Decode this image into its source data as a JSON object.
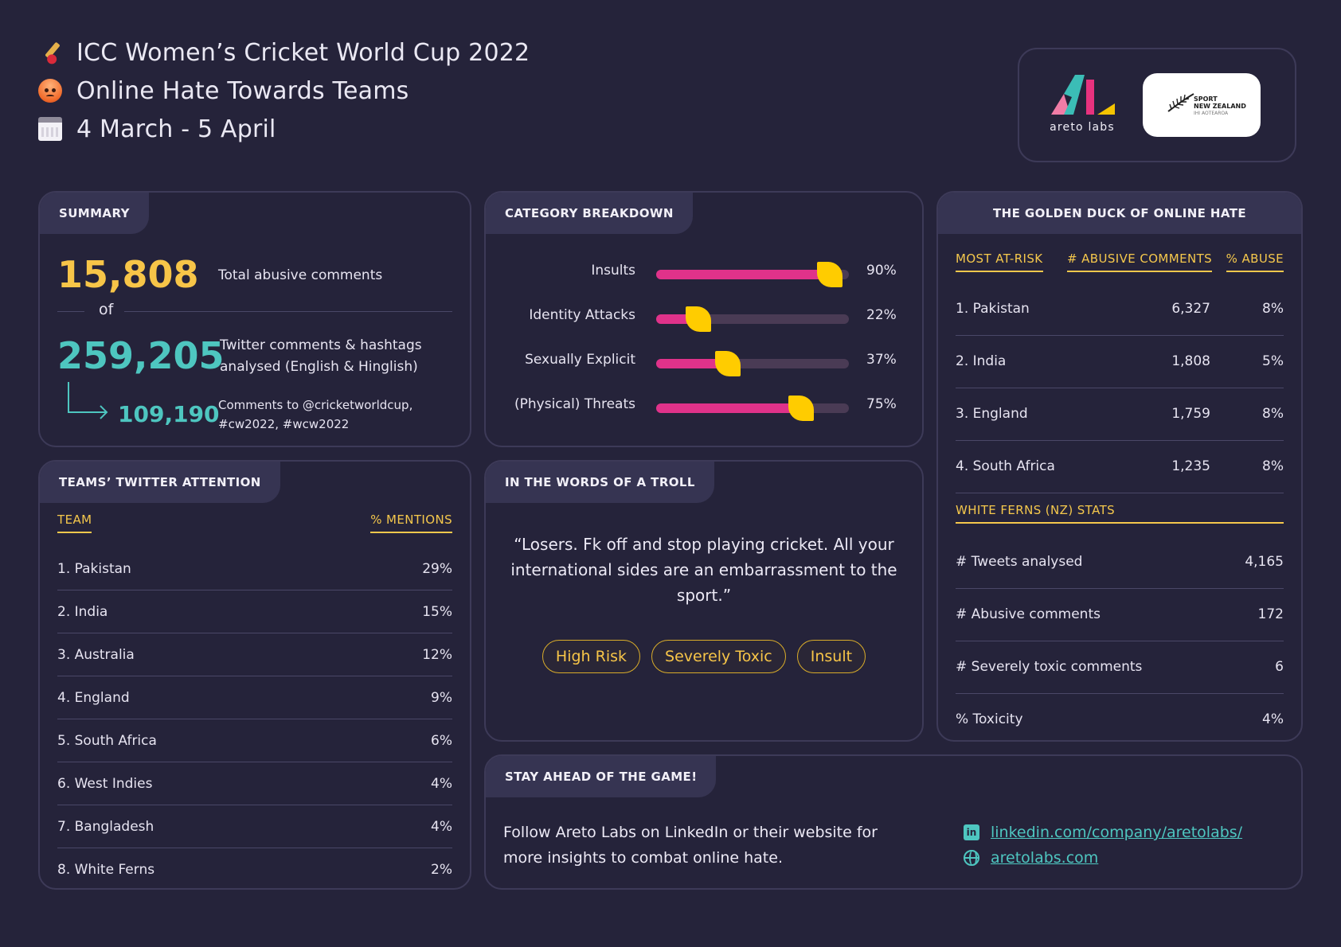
{
  "header": {
    "title": "ICC Women’s Cricket World Cup 2022",
    "subtitle": "Online Hate Towards Teams",
    "dates": "4 March - 5 April",
    "icons": [
      "cricket-bat-icon",
      "angry-face-icon",
      "calendar-icon"
    ]
  },
  "logos": {
    "areto_label": "areto labs",
    "snz_line1": "SPORT",
    "snz_line2": "NEW ZEALAND",
    "snz_line3": "IHI AOTEAROA"
  },
  "summary": {
    "tab": "SUMMARY",
    "abusive_count": "15,808",
    "abusive_label": "Total abusive comments",
    "of": "of",
    "analysed_count": "259,205",
    "analysed_label_1": "Twitter comments & hashtags",
    "analysed_label_2": "analysed (English & Hinglish)",
    "official_count": "109,190",
    "official_label_1": "Comments to @cricketworldcup,",
    "official_label_2": "#cw2022, #wcw2022"
  },
  "category": {
    "tab": "CATEGORY BREAKDOWN",
    "items": [
      {
        "label": "Insults",
        "value": 90,
        "pct": "90%"
      },
      {
        "label": "Identity Attacks",
        "value": 22,
        "pct": "22%"
      },
      {
        "label": "Sexually Explicit",
        "value": 37,
        "pct": "37%"
      },
      {
        "label": "(Physical) Threats",
        "value": 75,
        "pct": "75%"
      }
    ]
  },
  "attention": {
    "tab": "TEAMS’ TWITTER ATTENTION",
    "col_team": "TEAM",
    "col_mentions": "% MENTIONS",
    "rows": [
      {
        "team": "1. Pakistan",
        "pct": "29%"
      },
      {
        "team": "2. India",
        "pct": "15%"
      },
      {
        "team": "3. Australia",
        "pct": "12%"
      },
      {
        "team": "4. England",
        "pct": "9%"
      },
      {
        "team": "5. South Africa",
        "pct": "6%"
      },
      {
        "team": "6. West Indies",
        "pct": "4%"
      },
      {
        "team": "7. Bangladesh",
        "pct": "4%"
      },
      {
        "team": "8. White Ferns",
        "pct": "2%"
      }
    ]
  },
  "troll": {
    "tab": "IN THE WORDS OF A TROLL",
    "quote": "“Losers. Fk off and stop playing cricket. All your international sides are an embarrassment to the sport.”",
    "tags": [
      "High Risk",
      "Severely Toxic",
      "Insult"
    ]
  },
  "golden": {
    "tab": "THE GOLDEN DUCK OF ONLINE HATE",
    "col_team": "MOST AT-RISK",
    "col_count": "# ABUSIVE COMMENTS",
    "col_pct": "% ABUSE",
    "rows": [
      {
        "team": "1. Pakistan",
        "count": "6,327",
        "pct": "8%"
      },
      {
        "team": "2. India",
        "count": "1,808",
        "pct": "5%"
      },
      {
        "team": "3. England",
        "count": "1,759",
        "pct": "8%"
      },
      {
        "team": "4. South Africa",
        "count": "1,235",
        "pct": "8%"
      }
    ],
    "nz_head": "WHITE FERNS (NZ) STATS",
    "nz_rows": [
      {
        "label": "# Tweets analysed",
        "value": "4,165"
      },
      {
        "label": "# Abusive comments",
        "value": "172"
      },
      {
        "label": "# Severely toxic comments",
        "value": "6"
      },
      {
        "label": "% Toxicity",
        "value": "4%"
      }
    ]
  },
  "cta": {
    "tab": "STAY AHEAD OF THE GAME!",
    "text": "Follow Areto Labs on LinkedIn or their website for more insights to combat online hate.",
    "linkedin": "linkedin.com/company/aretolabs/",
    "website": "aretolabs.com"
  },
  "colors": {
    "background": "#25233a",
    "accent_yellow": "#f7c548",
    "accent_teal": "#4ec6c0",
    "bar_pink": "#e0328a",
    "knob_yellow": "#ffcc00"
  }
}
